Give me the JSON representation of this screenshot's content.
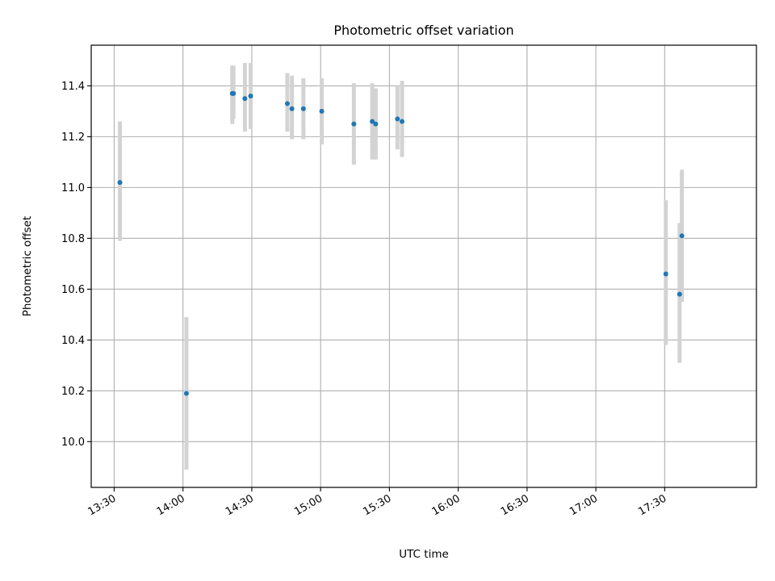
{
  "chart_data": {
    "type": "scatter",
    "title": "Photometric offset variation",
    "xlabel": "UTC time",
    "ylabel": "Photometric offset",
    "xlim": [
      "13:20",
      "18:10"
    ],
    "ylim": [
      9.82,
      11.56
    ],
    "grid": true,
    "xticks": [
      "13:30",
      "14:00",
      "14:30",
      "15:00",
      "15:30",
      "16:00",
      "16:30",
      "17:00",
      "17:30"
    ],
    "yticks": [
      10.0,
      10.2,
      10.4,
      10.6,
      10.8,
      11.0,
      11.2,
      11.4
    ],
    "colors": {
      "point": "#1f77b4",
      "errorbar": "#d3d3d3",
      "grid": "#b0b0b0"
    },
    "series": [
      {
        "points": [
          {
            "time": "13:32:30",
            "y": 11.02,
            "ylow": 10.79,
            "yhigh": 11.26
          },
          {
            "time": "14:01:30",
            "y": 10.19,
            "ylow": 9.89,
            "yhigh": 10.49
          },
          {
            "time": "14:21:30",
            "y": 11.37,
            "ylow": 11.25,
            "yhigh": 11.48
          },
          {
            "time": "14:22:00",
            "y": 11.37,
            "ylow": 11.27,
            "yhigh": 11.48
          },
          {
            "time": "14:27:00",
            "y": 11.35,
            "ylow": 11.22,
            "yhigh": 11.49
          },
          {
            "time": "14:29:30",
            "y": 11.36,
            "ylow": 11.23,
            "yhigh": 11.49
          },
          {
            "time": "14:45:30",
            "y": 11.33,
            "ylow": 11.22,
            "yhigh": 11.45
          },
          {
            "time": "14:47:30",
            "y": 11.31,
            "ylow": 11.19,
            "yhigh": 11.44
          },
          {
            "time": "14:52:30",
            "y": 11.31,
            "ylow": 11.19,
            "yhigh": 11.43
          },
          {
            "time": "15:00:30",
            "y": 11.3,
            "ylow": 11.17,
            "yhigh": 11.43
          },
          {
            "time": "15:14:30",
            "y": 11.25,
            "ylow": 11.09,
            "yhigh": 11.41
          },
          {
            "time": "15:22:30",
            "y": 11.26,
            "ylow": 11.11,
            "yhigh": 11.41
          },
          {
            "time": "15:24:00",
            "y": 11.25,
            "ylow": 11.11,
            "yhigh": 11.39
          },
          {
            "time": "15:33:30",
            "y": 11.27,
            "ylow": 11.15,
            "yhigh": 11.4
          },
          {
            "time": "15:35:30",
            "y": 11.26,
            "ylow": 11.12,
            "yhigh": 11.42
          },
          {
            "time": "17:30:30",
            "y": 10.66,
            "ylow": 10.38,
            "yhigh": 10.95
          },
          {
            "time": "17:36:30",
            "y": 10.58,
            "ylow": 10.31,
            "yhigh": 10.86
          },
          {
            "time": "17:37:30",
            "y": 10.81,
            "ylow": 10.55,
            "yhigh": 11.07
          }
        ]
      }
    ]
  }
}
